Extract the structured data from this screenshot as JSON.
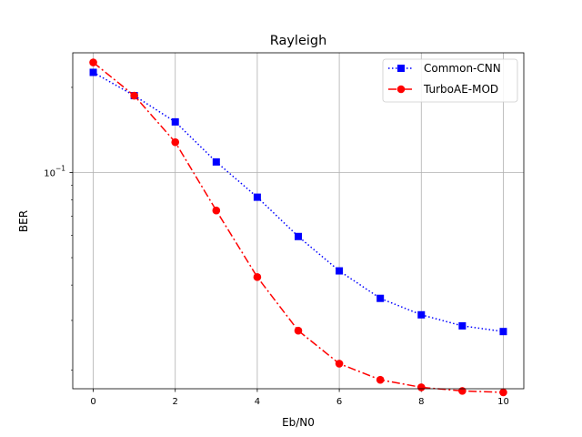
{
  "chart_data": {
    "type": "line",
    "title": "Rayleigh",
    "xlabel": "Eb/N0",
    "ylabel": "BER",
    "x": [
      0,
      1,
      2,
      3,
      4,
      5,
      6,
      7,
      8,
      9,
      10
    ],
    "xlim": [
      -0.5,
      10.5
    ],
    "ylim": [
      0.0172,
      0.265
    ],
    "yscale": "log",
    "x_ticks": [
      0,
      2,
      4,
      6,
      8,
      10
    ],
    "x_tick_labels": [
      "0",
      "2",
      "4",
      "6",
      "8",
      "10"
    ],
    "y_ticks": [
      0.1
    ],
    "y_tick_labels": [
      "10",
      "−1"
    ],
    "grid": true,
    "legend_position": "top-right",
    "series": [
      {
        "name": "Common-CNN",
        "values": [
          0.226,
          0.187,
          0.151,
          0.109,
          0.0818,
          0.0594,
          0.0449,
          0.0359,
          0.0314,
          0.0287,
          0.0274
        ],
        "color": "#0000ff",
        "line_style": "dotted",
        "marker": "square"
      },
      {
        "name": "TurboAE-MOD",
        "values": [
          0.245,
          0.187,
          0.128,
          0.0734,
          0.0427,
          0.0276,
          0.0211,
          0.0185,
          0.0174,
          0.0169,
          0.0167
        ],
        "color": "#ff0000",
        "line_style": "dash-dot",
        "marker": "circle"
      }
    ]
  }
}
